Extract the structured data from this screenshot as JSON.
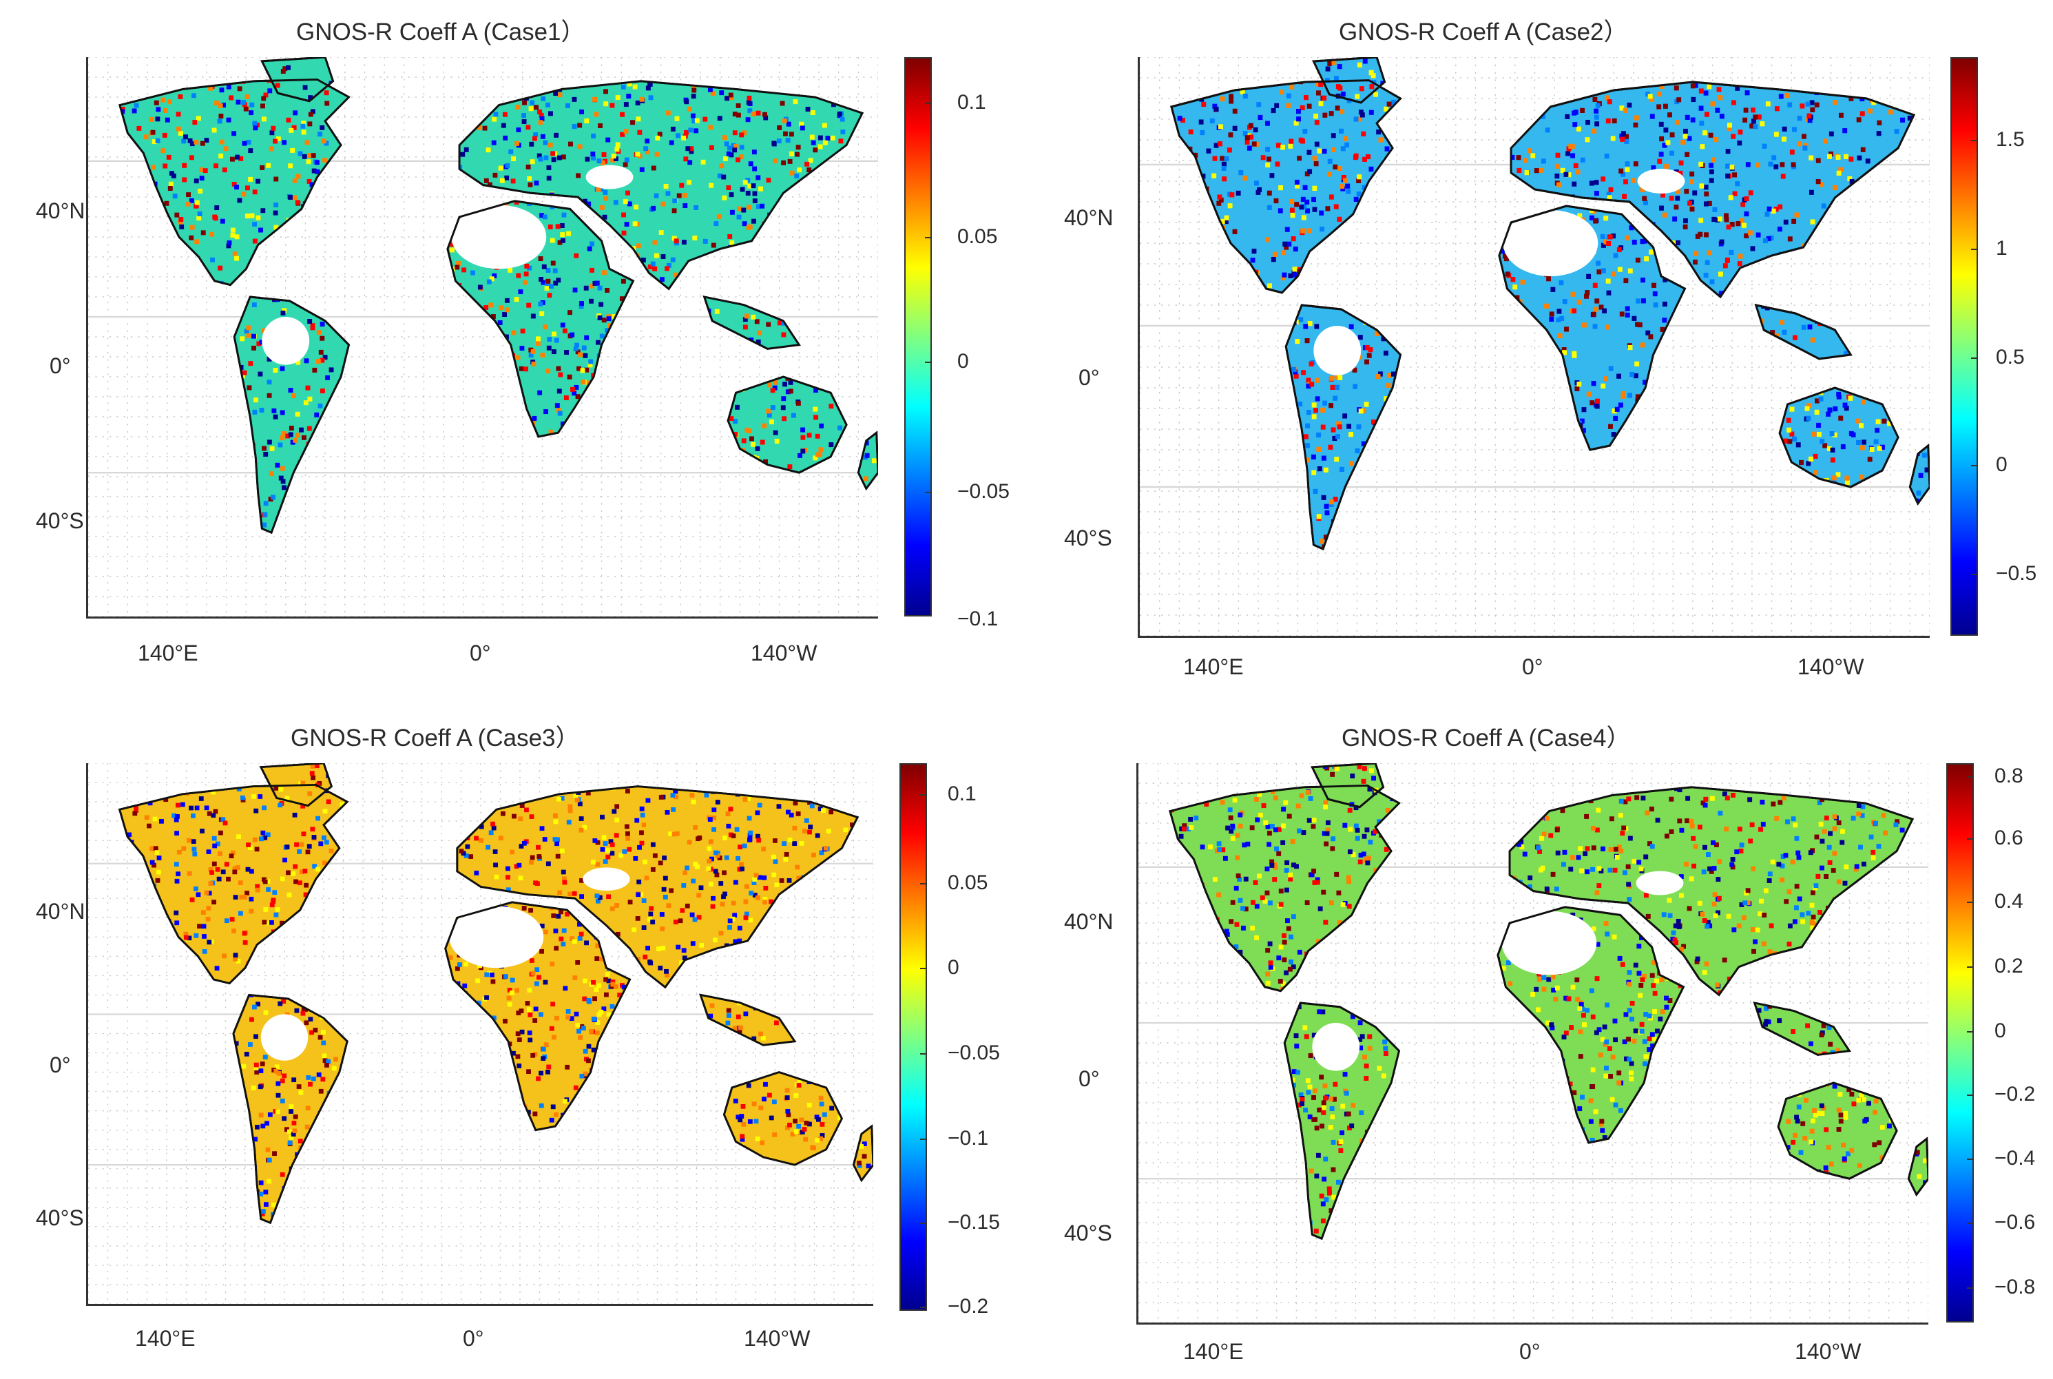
{
  "colormap": [
    "#00008f",
    "#0000ff",
    "#0080ff",
    "#00ffff",
    "#80ff80",
    "#ffff00",
    "#ff8000",
    "#ff0000",
    "#800000"
  ],
  "panels": [
    {
      "title": "GNOS-R  Coeff A (Case1）",
      "lat_labels": [
        "40°N",
        "0°",
        "40°S"
      ],
      "lon_labels": [
        "140°E",
        "0°",
        "140°W"
      ],
      "colorbar_ticks": [
        "0.1",
        "0.05",
        "0",
        "−0.05",
        "−0.1"
      ],
      "land_color": "#32d9b0"
    },
    {
      "title": "GNOS-R  Coeff A  (Case2）",
      "lat_labels": [
        "40°N",
        "0°",
        "40°S"
      ],
      "lon_labels": [
        "140°E",
        "0°",
        "140°W"
      ],
      "colorbar_ticks": [
        "1.5",
        "1",
        "0.5",
        "0",
        "−0.5"
      ],
      "land_color": "#35b8ee"
    },
    {
      "title": "GNOS-R  Coeff A (Case3）",
      "lat_labels": [
        "40°N",
        "0°",
        "40°S"
      ],
      "lon_labels": [
        "140°E",
        "0°",
        "140°W"
      ],
      "colorbar_ticks": [
        "0.1",
        "0.05",
        "0",
        "−0.05",
        "−0.1",
        "−0.15",
        "−0.2"
      ],
      "land_color": "#f4c21b"
    },
    {
      "title": "GNOS-R  Coeff A (Case4）",
      "lat_labels": [
        "40°N",
        "0°",
        "40°S"
      ],
      "lon_labels": [
        "140°E",
        "0°",
        "140°W"
      ],
      "colorbar_ticks": [
        "0.8",
        "0.6",
        "0.4",
        "0.2",
        "0",
        "−0.2",
        "−0.4",
        "−0.6",
        "−0.8"
      ],
      "land_color": "#7fdc55"
    }
  ]
}
